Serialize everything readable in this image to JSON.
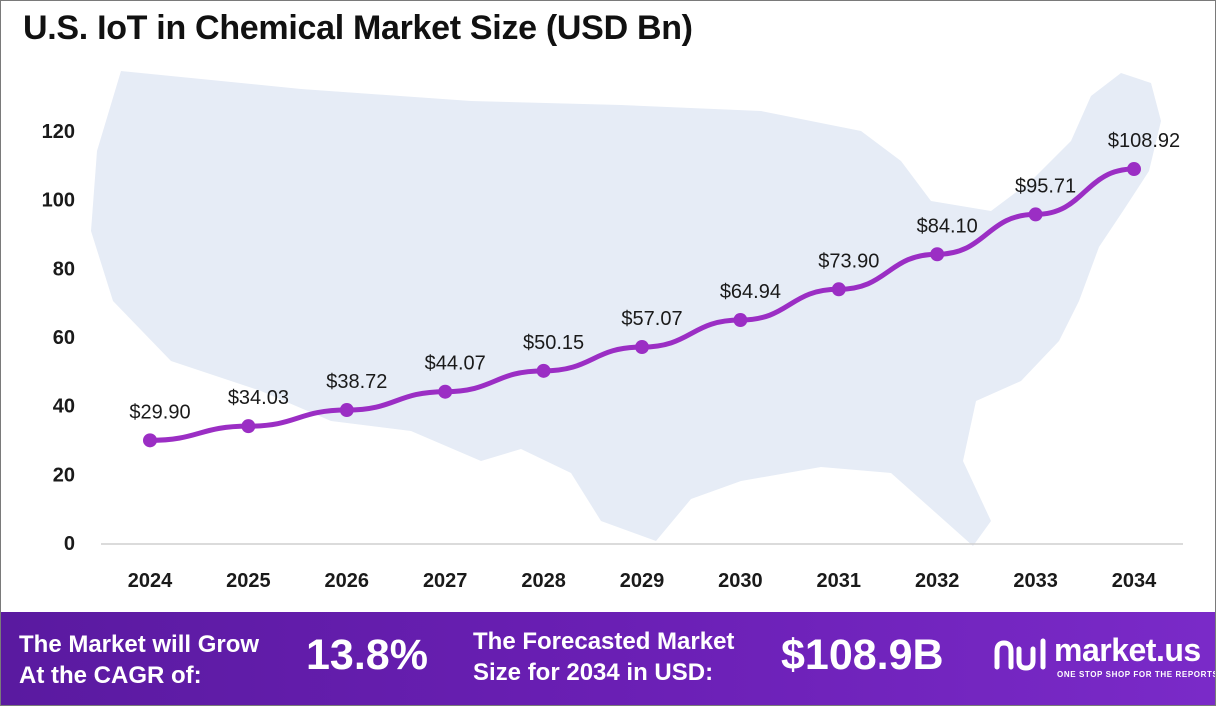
{
  "title": "U.S. IoT in Chemical Market Size (USD Bn)",
  "colors": {
    "line": "#9b2ec4",
    "map": "#e6ecf6",
    "banner_start": "#5a1aa0",
    "banner_end": "#7a2ac8"
  },
  "chart_data": {
    "type": "line",
    "categories": [
      "2024",
      "2025",
      "2026",
      "2027",
      "2028",
      "2029",
      "2030",
      "2031",
      "2032",
      "2033",
      "2034"
    ],
    "values": [
      29.9,
      34.03,
      38.72,
      44.07,
      50.15,
      57.07,
      64.94,
      73.9,
      84.1,
      95.71,
      108.92
    ],
    "data_labels": [
      "$29.90",
      "$34.03",
      "$38.72",
      "$44.07",
      "$50.15",
      "$57.07",
      "$64.94",
      "$73.90",
      "$84.10",
      "$95.71",
      "$108.92"
    ],
    "yticks": [
      "0",
      "20",
      "40",
      "60",
      "80",
      "100",
      "120"
    ],
    "ylim": [
      0,
      120
    ],
    "grid": false,
    "legend": "none",
    "background": "us-map-silhouette"
  },
  "banner": {
    "cagr_label_line1": "The Market will Grow",
    "cagr_label_line2": "At the CAGR of:",
    "cagr_value": "13.8%",
    "forecast_label_line1": "The Forecasted Market",
    "forecast_label_line2": "Size for 2034 in USD:",
    "forecast_value": "$108.9B"
  },
  "logo": {
    "name": "market.us",
    "tagline": "ONE STOP SHOP FOR THE REPORTS",
    "icon": "market-us-logo-icon"
  }
}
